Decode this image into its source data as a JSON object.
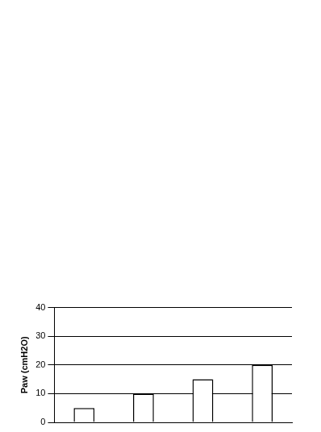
{
  "chart_data": {
    "type": "bar",
    "y_label": "Paw (cmH2O)",
    "categories": [
      null,
      null,
      null,
      null
    ],
    "values": [
      5,
      10,
      15,
      20
    ],
    "color": "#ffffff",
    "ylim": [
      0,
      40
    ],
    "yticks": [
      0,
      10,
      20,
      30,
      40
    ],
    "grid": true,
    "tick_labels": "y"
  }
}
